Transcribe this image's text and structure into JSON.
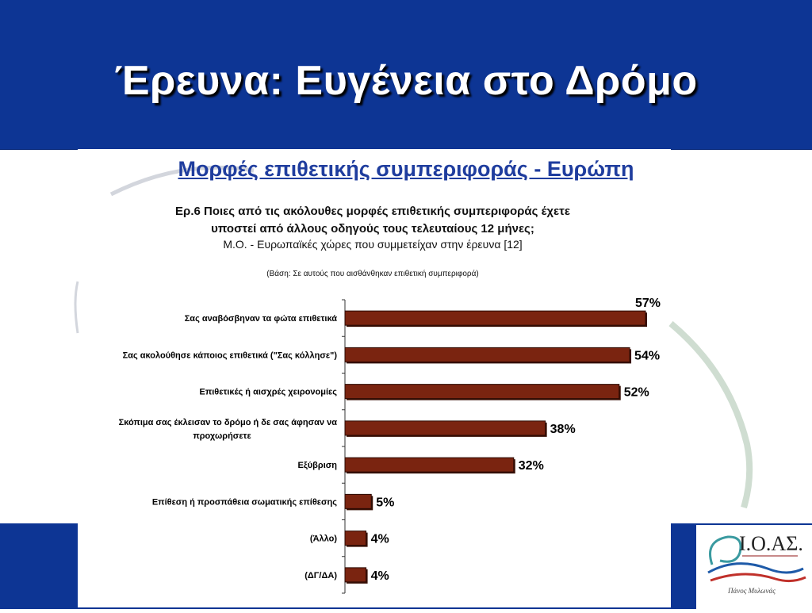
{
  "title": "Έρευνα: Ευγένεια στο Δρόμο",
  "subtitle": "Μορφές επιθετικής συμπεριφοράς - Ευρώπη",
  "question_line1": "Ερ.6 Ποιες από τις ακόλουθες μορφές επιθετικής συμπεριφοράς έχετε",
  "question_line2": "υποστεί από άλλους οδηγούς τους τελευταίους 12 μήνες;",
  "average_note": "Μ.Ο. - Ευρωπαϊκές χώρες που συμμετείχαν στην έρευνα [12]",
  "base_note": "(Βάση: Σε αυτούς που αισθάνθηκαν επιθετική συμπεριφορά)",
  "logo": {
    "text": "Ι.Ο.ΑΣ.",
    "signature": "Πάνος Μυλωνάς"
  },
  "colors": {
    "header": "#0d3594",
    "bar": "#7a2410",
    "subtitle": "#1f3d9e"
  },
  "chart_data": {
    "type": "bar",
    "orientation": "horizontal",
    "categories": [
      "Σας αναβόσβηναν τα φώτα επιθετικά",
      "Σας ακολούθησε κάποιος επιθετικά (\"Σας κόλλησε\")",
      "Επιθετικές ή αισχρές χειρονομίες",
      "Σκόπιμα σας έκλεισαν το δρόμο ή δε σας άφησαν να προχωρήσετε",
      "Εξύβριση",
      "Επίθεση ή προσπάθεια σωματικής επίθεσης",
      "(Άλλο)",
      "(ΔΓ/ΔΑ)"
    ],
    "values": [
      57,
      54,
      52,
      38,
      32,
      5,
      4,
      4
    ],
    "value_labels": [
      "57%",
      "54%",
      "52%",
      "38%",
      "32%",
      "5%",
      "4%",
      "4%"
    ],
    "xlim": [
      0,
      60
    ],
    "grid": false,
    "legend": "none"
  }
}
